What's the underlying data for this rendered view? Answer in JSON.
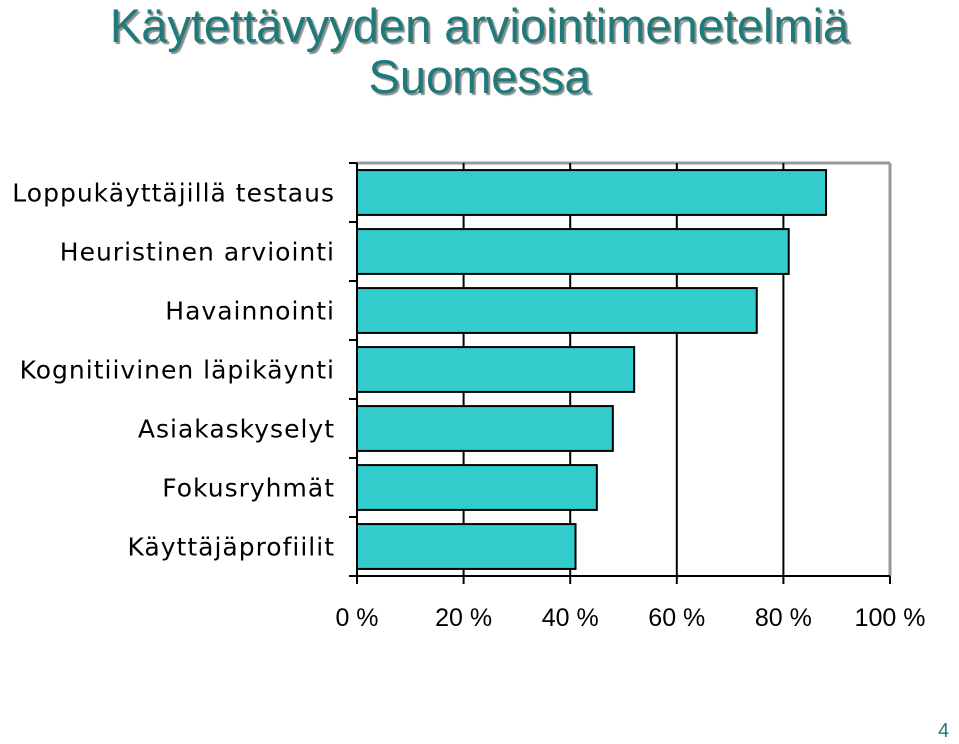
{
  "title_line1": "Käytettävyyden arviointimenetelmiä",
  "title_line2": "Suomessa",
  "page_number": "4",
  "colors": {
    "bar_fill": "#33cccc",
    "title": "#1f7a7a"
  },
  "chart_data": {
    "type": "bar",
    "orientation": "horizontal",
    "categories": [
      "Loppukäyttäjillä testaus",
      "Heuristinen arviointi",
      "Havainnointi",
      "Kognitiivinen läpikäynti",
      "Asiakaskyselyt",
      "Fokusryhmät",
      "Käyttäjäprofiilit"
    ],
    "values": [
      88,
      81,
      75,
      52,
      48,
      45,
      41
    ],
    "xlim": [
      0,
      100
    ],
    "ticks": [
      "0 %",
      "20 %",
      "40 %",
      "60 %",
      "80 %",
      "100 %"
    ],
    "grid": true,
    "legend": "none"
  }
}
